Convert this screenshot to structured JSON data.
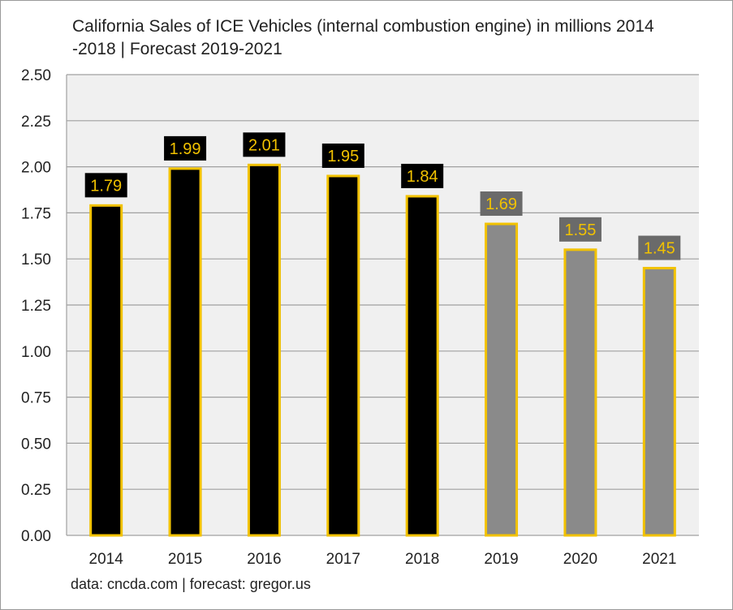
{
  "chart_data": {
    "type": "bar",
    "title": "California Sales of ICE Vehicles (internal combustion engine) in millions 2014 -2018 | Forecast 2019-2021",
    "xlabel": "",
    "ylabel": "",
    "ylim": [
      0,
      2.5
    ],
    "yticks": [
      "0.00",
      "0.25",
      "0.50",
      "0.75",
      "1.00",
      "1.25",
      "1.50",
      "1.75",
      "2.00",
      "2.25",
      "2.50"
    ],
    "categories": [
      "2014",
      "2015",
      "2016",
      "2017",
      "2018",
      "2019",
      "2020",
      "2021"
    ],
    "values": [
      1.79,
      1.99,
      2.01,
      1.95,
      1.84,
      1.69,
      1.55,
      1.45
    ],
    "data_labels": [
      "1.79",
      "1.99",
      "2.01",
      "1.95",
      "1.84",
      "1.69",
      "1.55",
      "1.45"
    ],
    "series_kind": [
      "actual",
      "actual",
      "actual",
      "actual",
      "actual",
      "forecast",
      "forecast",
      "forecast"
    ],
    "grid": true,
    "source": "data: cncda.com | forecast: gregor.us"
  },
  "colors": {
    "actual_bar": "#000000",
    "forecast_bar": "#8a8a8a",
    "bar_outline": "#f2c200",
    "label_text": "#f2c200",
    "actual_label_bg": "#000000",
    "forecast_label_bg": "#6a6a6a",
    "plot_bg": "#f0f0f0",
    "grid": "#a0a0a0",
    "axis_text": "#222222"
  }
}
